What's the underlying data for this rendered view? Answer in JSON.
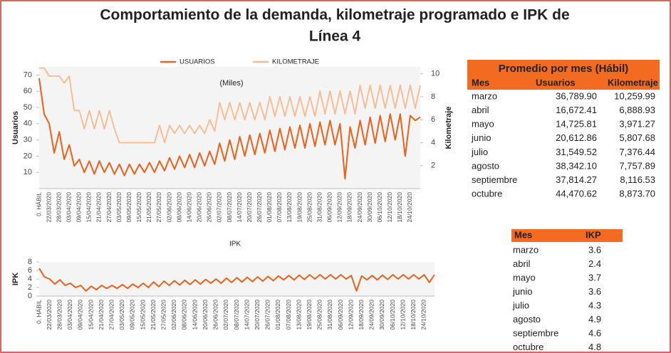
{
  "title": "Comportamiento de la demanda, kilometraje programado e IPK de",
  "title_line2": "Línea 4",
  "chart_data": [
    {
      "type": "line",
      "annotation": "(Miles)",
      "ylabel": "Usuarios",
      "y2label": "Kilometraje",
      "categories": [
        "0. HÁBIL",
        null,
        "22/03/2020",
        null,
        "28/03/2020",
        null,
        "03/04/2020",
        null,
        "09/04/2020",
        null,
        "15/04/2020",
        null,
        "21/04/2020",
        null,
        "27/04/2020",
        null,
        "03/05/2020",
        null,
        "09/05/2020",
        null,
        "15/05/2020",
        null,
        "21/05/2020",
        null,
        "27/05/2020",
        null,
        "02/06/2020",
        null,
        "08/06/2020",
        null,
        "14/06/2020",
        null,
        "20/06/2020",
        null,
        "26/06/2020",
        null,
        "02/07/2020",
        null,
        "08/07/2020",
        null,
        "14/07/2020",
        null,
        "20/07/2020",
        null,
        "26/07/2020",
        null,
        "01/08/2020",
        null,
        "07/08/2020",
        null,
        "13/08/2020",
        null,
        "19/08/2020",
        null,
        "25/08/2020",
        null,
        "31/08/2020",
        null,
        "06/09/2020",
        null,
        "12/09/2020",
        null,
        "18/09/2020",
        null,
        "24/09/2020",
        null,
        "30/09/2020",
        null,
        "06/10/2020",
        null,
        "12/10/2020",
        null,
        "18/10/2020",
        null,
        "24/10/2020",
        null,
        null
      ],
      "series": [
        {
          "name": "USUARIOS",
          "color": "#e8621a",
          "values": [
            68,
            46,
            40,
            22,
            35,
            18,
            27,
            14,
            18,
            10,
            17,
            9,
            17,
            10,
            16,
            9,
            15,
            8,
            15,
            9,
            15,
            10,
            16,
            10,
            17,
            11,
            19,
            12,
            20,
            13,
            21,
            13,
            22,
            14,
            23,
            15,
            28,
            17,
            30,
            18,
            32,
            20,
            33,
            21,
            34,
            22,
            36,
            23,
            37,
            24,
            38,
            25,
            39,
            25,
            40,
            26,
            41,
            27,
            42,
            27,
            40,
            6,
            38,
            25,
            42,
            27,
            44,
            28,
            45,
            29,
            46,
            30,
            46,
            20,
            45,
            42,
            44
          ]
        },
        {
          "name": "KILOMETRAJE",
          "color": "#f8b98c",
          "axis": "y2",
          "values": [
            10.5,
            10.5,
            9.8,
            9.8,
            9.8,
            9.2,
            9.8,
            6.8,
            6.8,
            5.2,
            6.8,
            5.2,
            6.8,
            5.2,
            6.8,
            5.2,
            4,
            4,
            4,
            4,
            4,
            4,
            4,
            4,
            5.5,
            4,
            5.5,
            4.8,
            5.5,
            4.8,
            5.5,
            4.8,
            5.5,
            4.8,
            6,
            5,
            7.5,
            6,
            7.5,
            6,
            7.5,
            6,
            7.5,
            6,
            7.5,
            6,
            8,
            6.3,
            8,
            6.3,
            8,
            6.3,
            8,
            6.3,
            8,
            6.3,
            8.5,
            6.5,
            8.5,
            6.5,
            8.5,
            6.5,
            8.5,
            6.5,
            9,
            7,
            9,
            7,
            9,
            7,
            9,
            7,
            9,
            7,
            9,
            7,
            9
          ]
        }
      ],
      "ylim": [
        0,
        75
      ],
      "yticks": [
        10,
        20,
        30,
        40,
        50,
        60,
        70
      ],
      "y2lim": [
        0,
        10.6
      ],
      "y2ticks": [
        2,
        4,
        6,
        8,
        10
      ],
      "legend": "top"
    },
    {
      "type": "line",
      "title": "IPK",
      "ylabel": "IPK",
      "categories": [
        "0. HÁBIL",
        null,
        "22/03/2020",
        null,
        "28/03/2020",
        null,
        "03/04/2020",
        null,
        "09/04/2020",
        null,
        "15/04/2020",
        null,
        "21/04/2020",
        null,
        "27/04/2020",
        null,
        "03/05/2020",
        null,
        "09/05/2020",
        null,
        "15/05/2020",
        null,
        "21/05/2020",
        null,
        "27/05/2020",
        null,
        "02/06/2020",
        null,
        "08/06/2020",
        null,
        "14/06/2020",
        null,
        "20/06/2020",
        null,
        "26/06/2020",
        null,
        "02/07/2020",
        null,
        "08/07/2020",
        null,
        "14/07/2020",
        null,
        "20/07/2020",
        null,
        "26/07/2020",
        null,
        "01/08/2020",
        null,
        "07/08/2020",
        null,
        "13/08/2020",
        null,
        "19/08/2020",
        null,
        "25/08/2020",
        null,
        "31/08/2020",
        null,
        "06/09/2020",
        null,
        "12/09/2020",
        null,
        "18/09/2020",
        null,
        "24/09/2020",
        null,
        "30/09/2020",
        null,
        "06/10/2020",
        null,
        "12/10/2020",
        null,
        "18/10/2020",
        null,
        "24/10/2020",
        null,
        null
      ],
      "series": [
        {
          "name": "IPK",
          "color": "#e8621a",
          "values": [
            6.5,
            4.5,
            4,
            2.8,
            3.8,
            2.5,
            3,
            2,
            2.5,
            1.2,
            2.3,
            1.5,
            2.5,
            1.8,
            2.5,
            1.8,
            2.7,
            1.8,
            2.8,
            2,
            3,
            2,
            3.3,
            2.2,
            3.5,
            2.5,
            3.6,
            2.6,
            3.7,
            2.7,
            3.8,
            2.8,
            3.9,
            3,
            4,
            3,
            4.2,
            3.2,
            4.3,
            3.3,
            4.4,
            3.4,
            4.5,
            3.5,
            4.6,
            3.6,
            4.7,
            3.8,
            4.8,
            3.8,
            4.9,
            3.9,
            5,
            4,
            5,
            4,
            5,
            4,
            5,
            4,
            4.8,
            1.2,
            4.7,
            3.8,
            4.8,
            3.8,
            4.9,
            3.9,
            5,
            4,
            5,
            4,
            5,
            4,
            5,
            3.2,
            5
          ]
        }
      ],
      "ylim": [
        0,
        8
      ],
      "yticks": [
        0,
        2,
        4,
        6,
        8
      ]
    }
  ],
  "table1": {
    "title": "Promedio por mes (Hábil)",
    "header": [
      "Mes",
      "Usuarios",
      "Kilometraje"
    ],
    "rows": [
      [
        "marzo",
        "36,789.90",
        "10,259.99"
      ],
      [
        "abril",
        "16,672.41",
        "6,888.93"
      ],
      [
        "mayo",
        "14,725.81",
        "3,971.27"
      ],
      [
        "junio",
        "20,612.86",
        "5,807.68"
      ],
      [
        "julio",
        "31,549.52",
        "7,376.44"
      ],
      [
        "agosto",
        "38,342.10",
        "7,757.89"
      ],
      [
        "septiembre",
        "37,814.27",
        "8,116.53"
      ],
      [
        "octubre",
        "44,470.62",
        "8,873.70"
      ]
    ]
  },
  "table2": {
    "header": [
      "Mes",
      "IKP"
    ],
    "rows": [
      [
        "marzo",
        "3.6"
      ],
      [
        "abril",
        "2.4"
      ],
      [
        "mayo",
        "3.7"
      ],
      [
        "junio",
        "3.6"
      ],
      [
        "julio",
        "4.3"
      ],
      [
        "agosto",
        "4.9"
      ],
      [
        "septiembre",
        "4.6"
      ],
      [
        "octubre",
        "4.8"
      ]
    ]
  }
}
